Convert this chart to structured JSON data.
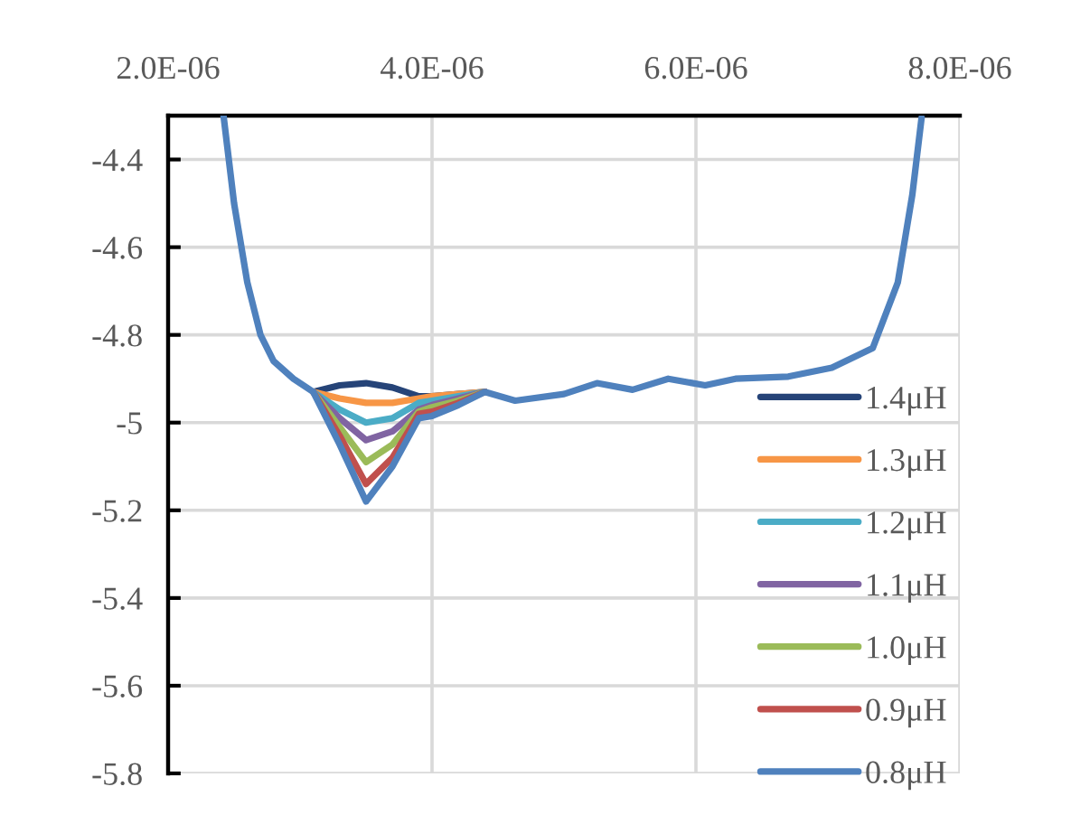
{
  "chart_data": {
    "type": "line",
    "x": [
      2.42e-06,
      2.5e-06,
      2.6e-06,
      2.7e-06,
      2.8e-06,
      2.95e-06,
      3.1e-06,
      3.3e-06,
      3.5e-06,
      3.7e-06,
      3.9e-06,
      4e-06,
      4.2e-06,
      4.4e-06,
      4.63e-06,
      5e-06,
      5.25e-06,
      5.52e-06,
      5.79e-06,
      6.07e-06,
      6.3e-06,
      6.7e-06,
      7.03e-06,
      7.34e-06,
      7.53e-06,
      7.64e-06,
      7.71e-06
    ],
    "series": [
      {
        "name": "1.4μH",
        "color": "#264478",
        "values": [
          null,
          null,
          null,
          null,
          null,
          null,
          -4.93,
          -4.915,
          -4.91,
          -4.92,
          -4.94,
          -4.94,
          -4.935,
          -4.93,
          null,
          null,
          null,
          null,
          null,
          null,
          null,
          null,
          null,
          null,
          null,
          null,
          null
        ]
      },
      {
        "name": "1.3μH",
        "color": "#f79646",
        "values": [
          null,
          null,
          null,
          null,
          null,
          null,
          -4.93,
          -4.945,
          -4.955,
          -4.955,
          -4.945,
          -4.94,
          -4.935,
          -4.93,
          null,
          null,
          null,
          null,
          null,
          null,
          null,
          null,
          null,
          null,
          null,
          null,
          null
        ]
      },
      {
        "name": "1.2μH",
        "color": "#4bacc6",
        "values": [
          null,
          null,
          null,
          null,
          null,
          null,
          -4.93,
          -4.97,
          -5.0,
          -4.99,
          -4.955,
          -4.95,
          -4.94,
          -4.93,
          null,
          null,
          null,
          null,
          null,
          null,
          null,
          null,
          null,
          null,
          null,
          null,
          null
        ]
      },
      {
        "name": "1.1μH",
        "color": "#8064a2",
        "values": [
          null,
          null,
          null,
          null,
          null,
          null,
          -4.93,
          -4.99,
          -5.04,
          -5.02,
          -4.97,
          -4.96,
          -4.945,
          -4.93,
          null,
          null,
          null,
          null,
          null,
          null,
          null,
          null,
          null,
          null,
          null,
          null,
          null
        ]
      },
      {
        "name": "1.0μH",
        "color": "#9bbb59",
        "values": [
          null,
          null,
          null,
          null,
          null,
          null,
          -4.93,
          -5.01,
          -5.09,
          -5.05,
          -4.975,
          -4.965,
          -4.95,
          -4.93,
          null,
          null,
          null,
          null,
          null,
          null,
          null,
          null,
          null,
          null,
          null,
          null,
          null
        ]
      },
      {
        "name": "0.9μH",
        "color": "#c0504d",
        "values": [
          null,
          null,
          null,
          null,
          null,
          null,
          -4.93,
          -5.03,
          -5.14,
          -5.08,
          -4.98,
          -4.975,
          -4.955,
          -4.93,
          null,
          null,
          null,
          null,
          null,
          null,
          null,
          null,
          null,
          null,
          null,
          null,
          null
        ]
      },
      {
        "name": "0.8μH",
        "color": "#4f81bd",
        "values": [
          -4.3,
          -4.5,
          -4.68,
          -4.8,
          -4.86,
          -4.9,
          -4.93,
          -5.05,
          -5.18,
          -5.1,
          -4.99,
          -4.985,
          -4.96,
          -4.93,
          -4.95,
          -4.935,
          -4.91,
          -4.925,
          -4.9,
          -4.915,
          -4.9,
          -4.895,
          -4.875,
          -4.83,
          -4.68,
          -4.48,
          -4.305
        ]
      }
    ],
    "xlim": [
      2e-06,
      8e-06
    ],
    "xticks": [
      {
        "value": 2e-06,
        "label": "2.0E-06"
      },
      {
        "value": 4e-06,
        "label": "4.0E-06"
      },
      {
        "value": 6e-06,
        "label": "6.0E-06"
      },
      {
        "value": 8e-06,
        "label": "8.0E-06"
      }
    ],
    "ylim": [
      -5.8,
      -4.3
    ],
    "yticks": [
      {
        "value": -4.4,
        "label": "-4.4"
      },
      {
        "value": -4.6,
        "label": "-4.6"
      },
      {
        "value": -4.8,
        "label": "-4.8"
      },
      {
        "value": -5,
        "label": "-5"
      },
      {
        "value": -5.2,
        "label": "-5.2"
      },
      {
        "value": -5.4,
        "label": "-5.4"
      },
      {
        "value": -5.6,
        "label": "-5.6"
      },
      {
        "value": -5.8,
        "label": "-5.8"
      }
    ],
    "grid": true,
    "legend": "bottom right",
    "marker": "none",
    "line_style": "solid"
  }
}
